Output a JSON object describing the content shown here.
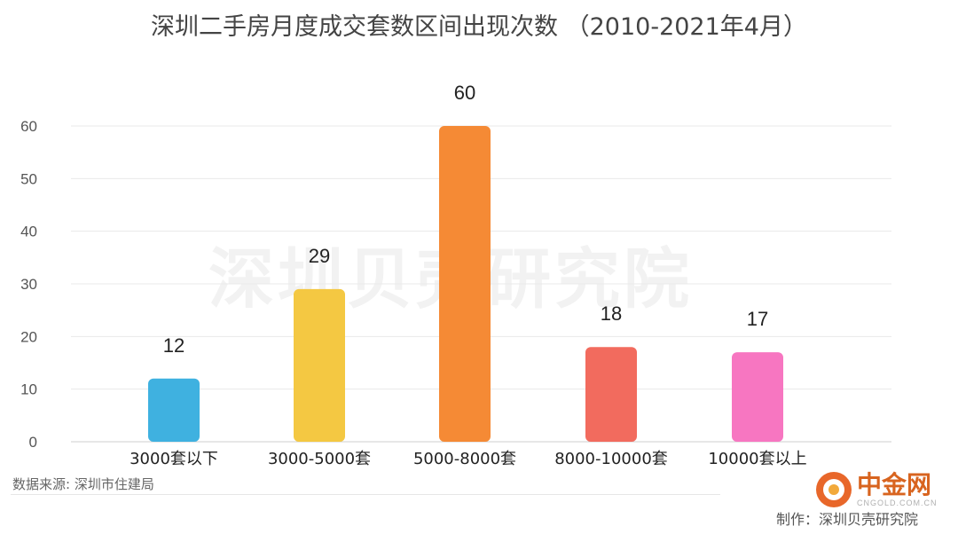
{
  "chart_data": {
    "type": "bar",
    "title": "深圳二手房月度成交套数区间出现次数 （2010-2021年4月）",
    "categories": [
      "3000套以下",
      "3000-5000套",
      "5000-8000套",
      "8000-10000套",
      "10000套以上"
    ],
    "values": [
      12,
      29,
      60,
      18,
      17
    ],
    "colors": [
      "#3fb1e0",
      "#f4c842",
      "#f58a35",
      "#f26b5e",
      "#f776c1"
    ],
    "ylim": [
      0,
      65
    ],
    "yticks": [
      0,
      10,
      20,
      30,
      40,
      50,
      60
    ],
    "grid": true,
    "data_labels": true
  },
  "watermark": "深圳贝壳研究院",
  "source": "数据来源: 深圳市住建局",
  "credit": "制作：深圳贝壳研究院",
  "logo": {
    "cn": "中金网",
    "en": "CNGOLD.COM.CN",
    "color": "#d8641f"
  }
}
